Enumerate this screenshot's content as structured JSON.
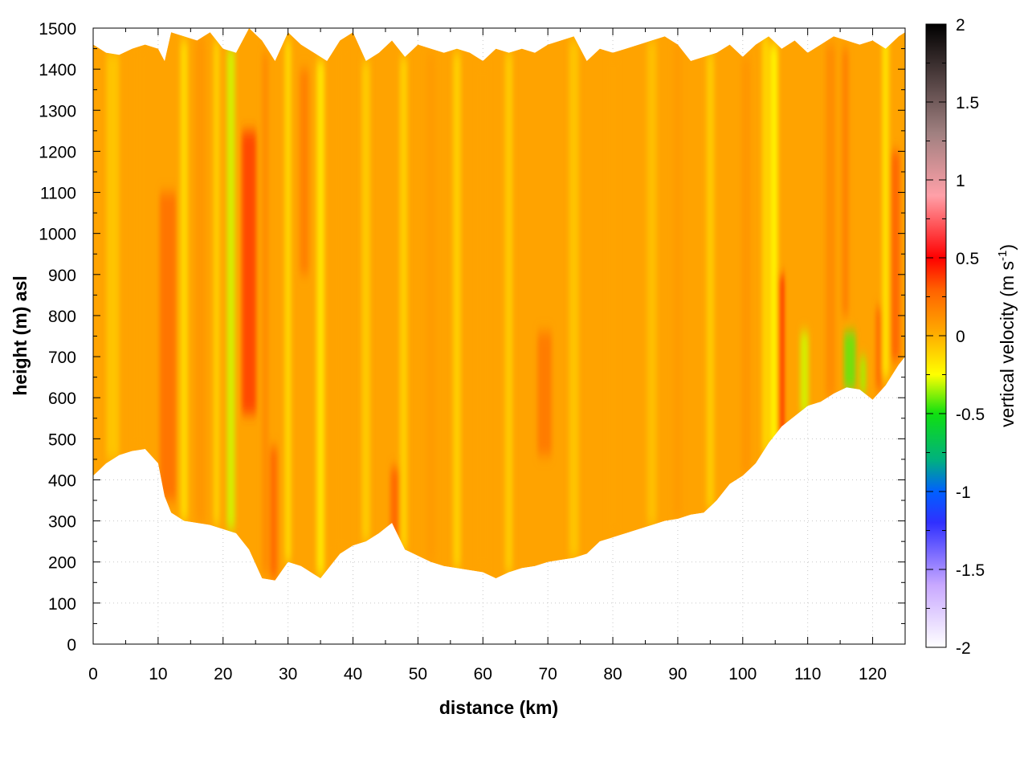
{
  "chart_data": {
    "type": "heatmap",
    "title": "",
    "xlabel": "distance (km)",
    "ylabel": "height (m) asl",
    "xlim": [
      0,
      125
    ],
    "ylim": [
      0,
      1500
    ],
    "x_ticks": [
      "0",
      "10",
      "20",
      "30",
      "40",
      "50",
      "60",
      "70",
      "80",
      "90",
      "100",
      "110",
      "120"
    ],
    "y_ticks": [
      "0",
      "100",
      "200",
      "300",
      "400",
      "500",
      "600",
      "700",
      "800",
      "900",
      "1000",
      "1100",
      "1200",
      "1300",
      "1400",
      "1500"
    ],
    "grid": true,
    "colorbar": {
      "label_main": "vertical velocity (m s",
      "label_sup": "-1",
      "label_close": ")",
      "range": [
        -2,
        2
      ],
      "ticks": [
        "2",
        "1.5",
        "1",
        "0.5",
        "0",
        "-0.5",
        "-1",
        "-1.5",
        "-2"
      ],
      "colormap": [
        {
          "value": -2.0,
          "color": "#ffffff"
        },
        {
          "value": -1.6,
          "color": "#c8a8ff"
        },
        {
          "value": -1.2,
          "color": "#3030ff"
        },
        {
          "value": -1.0,
          "color": "#0060ff"
        },
        {
          "value": -0.8,
          "color": "#00b080"
        },
        {
          "value": -0.5,
          "color": "#10e010"
        },
        {
          "value": -0.25,
          "color": "#ffff00"
        },
        {
          "value": 0.0,
          "color": "#ffb000"
        },
        {
          "value": 0.3,
          "color": "#ff6000"
        },
        {
          "value": 0.5,
          "color": "#ff0000"
        },
        {
          "value": 0.9,
          "color": "#ffa0a8"
        },
        {
          "value": 1.3,
          "color": "#a08080"
        },
        {
          "value": 2.0,
          "color": "#000000"
        }
      ]
    },
    "ground_surface": {
      "x": [
        0,
        2,
        4,
        6,
        8,
        10,
        11,
        12,
        14,
        16,
        18,
        20,
        22,
        24,
        26,
        28,
        30,
        32,
        34,
        35,
        36,
        38,
        40,
        42,
        44,
        46,
        48,
        50,
        52,
        54,
        56,
        58,
        60,
        62,
        64,
        66,
        68,
        70,
        72,
        74,
        76,
        78,
        80,
        82,
        84,
        86,
        88,
        90,
        92,
        94,
        96,
        98,
        100,
        102,
        104,
        106,
        108,
        110,
        112,
        114,
        116,
        118,
        120,
        122,
        124,
        125
      ],
      "y": [
        410,
        440,
        460,
        470,
        475,
        440,
        360,
        320,
        300,
        295,
        290,
        280,
        270,
        230,
        160,
        155,
        200,
        190,
        170,
        160,
        180,
        220,
        240,
        250,
        270,
        295,
        230,
        215,
        200,
        190,
        185,
        180,
        175,
        160,
        175,
        185,
        190,
        200,
        205,
        210,
        220,
        250,
        260,
        270,
        280,
        290,
        300,
        305,
        315,
        320,
        350,
        390,
        410,
        440,
        490,
        530,
        555,
        580,
        590,
        610,
        625,
        620,
        595,
        630,
        680,
        700
      ]
    },
    "top_boundary": {
      "x": [
        0,
        2,
        4,
        6,
        8,
        10,
        11,
        12,
        14,
        16,
        18,
        20,
        22,
        24,
        26,
        28,
        30,
        32,
        34,
        36,
        38,
        40,
        42,
        44,
        46,
        48,
        50,
        52,
        54,
        56,
        58,
        60,
        62,
        64,
        66,
        68,
        70,
        72,
        74,
        76,
        78,
        80,
        82,
        84,
        86,
        88,
        90,
        92,
        94,
        96,
        98,
        100,
        102,
        104,
        106,
        108,
        110,
        112,
        114,
        116,
        118,
        120,
        122,
        124,
        125
      ],
      "y": [
        1460,
        1440,
        1435,
        1450,
        1460,
        1450,
        1420,
        1490,
        1480,
        1470,
        1490,
        1450,
        1440,
        1500,
        1470,
        1420,
        1490,
        1460,
        1440,
        1420,
        1470,
        1490,
        1420,
        1440,
        1470,
        1430,
        1460,
        1450,
        1440,
        1450,
        1440,
        1420,
        1450,
        1440,
        1450,
        1440,
        1460,
        1470,
        1480,
        1420,
        1450,
        1440,
        1450,
        1460,
        1470,
        1480,
        1460,
        1420,
        1430,
        1440,
        1460,
        1430,
        1460,
        1480,
        1450,
        1470,
        1440,
        1460,
        1480,
        1470,
        1460,
        1470,
        1450,
        1480,
        1490,
        1495
      ]
    },
    "vertical_velocity_streaks": [
      {
        "x": 0.5,
        "width": 1.5,
        "w": 0.05,
        "ymin": 410,
        "ymax": 1450
      },
      {
        "x": 3,
        "width": 2,
        "w": -0.08,
        "ymin": 450,
        "ymax": 1440
      },
      {
        "x": 7,
        "width": 1.5,
        "w": 0.05,
        "ymin": 470,
        "ymax": 1460
      },
      {
        "x": 11.5,
        "width": 2.5,
        "w": 0.25,
        "ymin": 350,
        "ymax": 1100
      },
      {
        "x": 14,
        "width": 1.2,
        "w": -0.15,
        "ymin": 300,
        "ymax": 1470
      },
      {
        "x": 16.5,
        "width": 1.5,
        "w": 0.1,
        "ymin": 295,
        "ymax": 1480
      },
      {
        "x": 19,
        "width": 1,
        "w": -0.12,
        "ymin": 290,
        "ymax": 1470
      },
      {
        "x": 21.2,
        "width": 1.3,
        "w": -0.3,
        "ymin": 280,
        "ymax": 1450
      },
      {
        "x": 24,
        "width": 2.2,
        "w": 0.38,
        "ymin": 560,
        "ymax": 1250
      },
      {
        "x": 26.5,
        "width": 1,
        "w": 0.15,
        "ymin": 170,
        "ymax": 1440
      },
      {
        "x": 27.8,
        "width": 1.2,
        "w": 0.28,
        "ymin": 160,
        "ymax": 480
      },
      {
        "x": 30,
        "width": 1,
        "w": -0.15,
        "ymin": 200,
        "ymax": 1470
      },
      {
        "x": 32.5,
        "width": 1.4,
        "w": 0.2,
        "ymin": 900,
        "ymax": 1400
      },
      {
        "x": 35,
        "width": 1.2,
        "w": -0.2,
        "ymin": 170,
        "ymax": 1420
      },
      {
        "x": 38,
        "width": 1.5,
        "w": 0.05,
        "ymin": 220,
        "ymax": 1470
      },
      {
        "x": 42,
        "width": 1.3,
        "w": -0.1,
        "ymin": 250,
        "ymax": 1420
      },
      {
        "x": 46.5,
        "width": 1.5,
        "w": 0.3,
        "ymin": 230,
        "ymax": 430
      },
      {
        "x": 47.8,
        "width": 1.2,
        "w": -0.12,
        "ymin": 230,
        "ymax": 1430
      },
      {
        "x": 52,
        "width": 1.5,
        "w": 0.08,
        "ymin": 200,
        "ymax": 1440
      },
      {
        "x": 56,
        "width": 1.2,
        "w": -0.12,
        "ymin": 185,
        "ymax": 1440
      },
      {
        "x": 60,
        "width": 1.5,
        "w": 0.05,
        "ymin": 175,
        "ymax": 1420
      },
      {
        "x": 64,
        "width": 1.2,
        "w": -0.1,
        "ymin": 175,
        "ymax": 1440
      },
      {
        "x": 69.5,
        "width": 2.2,
        "w": 0.22,
        "ymin": 460,
        "ymax": 760
      },
      {
        "x": 74,
        "width": 1.5,
        "w": -0.08,
        "ymin": 210,
        "ymax": 1470
      },
      {
        "x": 80,
        "width": 1.5,
        "w": 0.05,
        "ymin": 260,
        "ymax": 1440
      },
      {
        "x": 86,
        "width": 1.5,
        "w": -0.06,
        "ymin": 290,
        "ymax": 1470
      },
      {
        "x": 90,
        "width": 1.5,
        "w": 0.08,
        "ymin": 305,
        "ymax": 1470
      },
      {
        "x": 95,
        "width": 1.2,
        "w": -0.1,
        "ymin": 330,
        "ymax": 1440
      },
      {
        "x": 100.5,
        "width": 1.5,
        "w": 0.1,
        "ymin": 410,
        "ymax": 1430
      },
      {
        "x": 103.5,
        "width": 1,
        "w": -0.15,
        "ymin": 460,
        "ymax": 1480
      },
      {
        "x": 105.8,
        "width": 1,
        "w": 0.5,
        "ymin": 500,
        "ymax": 900
      },
      {
        "x": 104.8,
        "width": 1.2,
        "w": -0.25,
        "ymin": 480,
        "ymax": 1460
      },
      {
        "x": 109.5,
        "width": 1.3,
        "w": -0.3,
        "ymin": 560,
        "ymax": 760
      },
      {
        "x": 113.5,
        "width": 1.5,
        "w": 0.15,
        "ymin": 600,
        "ymax": 1460
      },
      {
        "x": 116.5,
        "width": 1.8,
        "w": -0.42,
        "ymin": 620,
        "ymax": 760
      },
      {
        "x": 115.8,
        "width": 1,
        "w": 0.2,
        "ymin": 800,
        "ymax": 1450
      },
      {
        "x": 118.5,
        "width": 1,
        "w": -0.35,
        "ymin": 610,
        "ymax": 700
      },
      {
        "x": 121,
        "width": 1,
        "w": 0.3,
        "ymin": 620,
        "ymax": 820
      },
      {
        "x": 123.5,
        "width": 1.5,
        "w": 0.3,
        "ymin": 690,
        "ymax": 1200
      },
      {
        "x": 122,
        "width": 1,
        "w": -0.2,
        "ymin": 650,
        "ymax": 1480
      }
    ]
  }
}
